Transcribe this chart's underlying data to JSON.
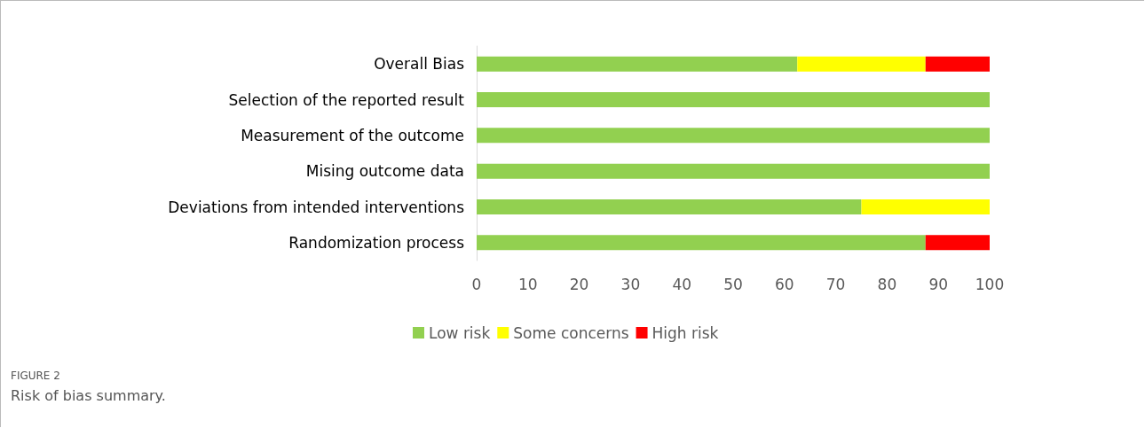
{
  "chart_data": {
    "type": "bar",
    "orientation": "horizontal",
    "stacked": true,
    "categories": [
      "Overall Bias",
      "Selection of the reported result",
      "Measurement of the outcome",
      "Mising outcome data",
      "Deviations from intended interventions",
      "Randomization process"
    ],
    "series": [
      {
        "name": "Low risk",
        "color": "#92d050",
        "values": [
          62.5,
          100,
          100,
          100,
          75,
          87.5
        ]
      },
      {
        "name": "Some concerns",
        "color": "#ffff00",
        "values": [
          25,
          0,
          0,
          0,
          25,
          0
        ]
      },
      {
        "name": "High risk",
        "color": "#ff0000",
        "values": [
          12.5,
          0,
          0,
          0,
          0,
          12.5
        ]
      }
    ],
    "xlim": [
      0,
      100
    ],
    "xticks": [
      0,
      10,
      20,
      30,
      40,
      50,
      60,
      70,
      80,
      90,
      100
    ],
    "grid": false,
    "legend": "bottom",
    "annotations": [
      "FIGURE 2",
      "Risk of bias summary."
    ]
  }
}
